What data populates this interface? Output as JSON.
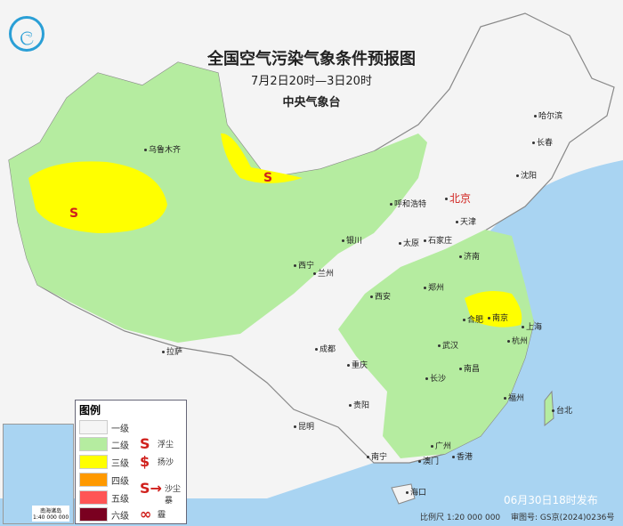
{
  "title": "全国空气污染气象条件预报图",
  "subtitle": "7月2日20时—3日20时",
  "agency": "中央气象台",
  "cities": {
    "wulumuqi": "乌鲁木齐",
    "lasa": "拉萨",
    "xining": "西宁",
    "lanzhou": "兰州",
    "yinchuan": "银川",
    "huhehaote": "呼和浩特",
    "beijing": "北京",
    "tianjin": "天津",
    "shijiazhuang": "石家庄",
    "taiyuan": "太原",
    "jinan": "济南",
    "zhengzhou": "郑州",
    "xian": "西安",
    "chengdu": "成都",
    "chongqing": "重庆",
    "wuhan": "武汉",
    "hefei": "合肥",
    "nanjing": "南京",
    "shanghai": "上海",
    "hangzhou": "杭州",
    "nanchang": "南昌",
    "changsha": "长沙",
    "fuzhou": "福州",
    "taibei": "台北",
    "guiyang": "贵阳",
    "kunming": "昆明",
    "nanning": "南宁",
    "guangzhou": "广州",
    "xianggang": "香港",
    "aomen": "澳门",
    "haikou": "海口",
    "shenyang": "沈阳",
    "changchun": "长春",
    "haerbin": "哈尔滨"
  },
  "legend": {
    "title": "图例",
    "levels": [
      {
        "label": "一级",
        "color": "#f5f5f5"
      },
      {
        "label": "二级",
        "color": "#b5eca0"
      },
      {
        "label": "三级",
        "color": "#ffff00"
      },
      {
        "label": "四级",
        "color": "#ff9900"
      },
      {
        "label": "五级",
        "color": "#ff5555"
      },
      {
        "label": "六级",
        "color": "#7a0020"
      }
    ],
    "symbols": [
      {
        "label": "浮尘",
        "icon": "floating-dust-icon"
      },
      {
        "label": "扬沙",
        "icon": "blowing-sand-icon"
      },
      {
        "label": "沙尘暴",
        "icon": "sandstorm-icon"
      },
      {
        "label": "霾",
        "icon": "haze-icon"
      }
    ]
  },
  "inset": {
    "label": "南海诸岛",
    "scale": "1:40 000 000"
  },
  "issued": "06月30日18时发布",
  "scale": "比例尺 1:20 000 000",
  "review_no": "审图号: GS京(2024)0236号",
  "dust_marker": "S"
}
